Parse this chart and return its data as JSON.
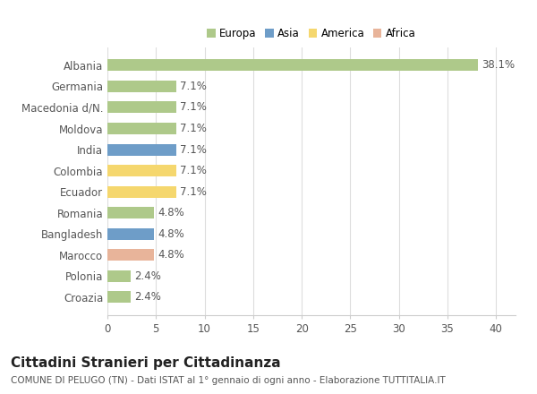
{
  "title": "Cittadini Stranieri per Cittadinanza",
  "subtitle": "COMUNE DI PELUGO (TN) - Dati ISTAT al 1° gennaio di ogni anno - Elaborazione TUTTITALIA.IT",
  "categories": [
    "Albania",
    "Germania",
    "Macedonia d/N.",
    "Moldova",
    "India",
    "Colombia",
    "Ecuador",
    "Romania",
    "Bangladesh",
    "Marocco",
    "Polonia",
    "Croazia"
  ],
  "values": [
    38.1,
    7.1,
    7.1,
    7.1,
    7.1,
    7.1,
    7.1,
    4.8,
    4.8,
    4.8,
    2.4,
    2.4
  ],
  "colors": [
    "#aec98a",
    "#aec98a",
    "#aec98a",
    "#aec98a",
    "#6e9dc8",
    "#f5d76e",
    "#f5d76e",
    "#aec98a",
    "#6e9dc8",
    "#e8b49a",
    "#aec98a",
    "#aec98a"
  ],
  "legend_labels": [
    "Europa",
    "Asia",
    "America",
    "Africa"
  ],
  "legend_colors": [
    "#aec98a",
    "#6e9dc8",
    "#f5d76e",
    "#e8b49a"
  ],
  "xlim": [
    0,
    42
  ],
  "xticks": [
    0,
    5,
    10,
    15,
    20,
    25,
    30,
    35,
    40
  ],
  "bar_height": 0.55,
  "background_color": "#ffffff",
  "plot_bg_color": "#f8f8f8",
  "grid_color": "#dddddd",
  "label_fontsize": 8.5,
  "tick_fontsize": 8.5,
  "title_fontsize": 11,
  "subtitle_fontsize": 7.5
}
